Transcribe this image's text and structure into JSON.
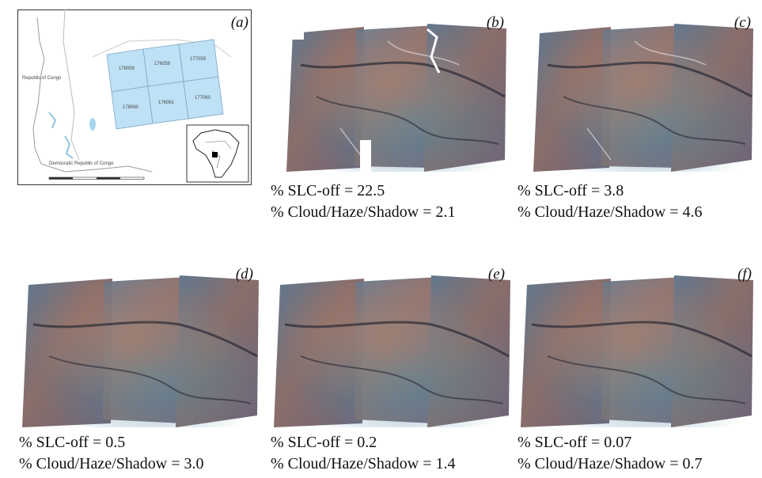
{
  "panels": [
    {
      "label": "(a)",
      "type": "map",
      "country_labels": [
        "Republic of Congo",
        "Democratic Republic of Congo"
      ],
      "scene_ids": [
        "178059",
        "176059",
        "177059",
        "178060",
        "176061",
        "177060"
      ]
    },
    {
      "label": "(b)",
      "slc_off": "% SLC-off = 22.5",
      "cloud": "% Cloud/Haze/Shadow = 2.1"
    },
    {
      "label": "(c)",
      "slc_off": "% SLC-off = 3.8",
      "cloud": "% Cloud/Haze/Shadow = 4.6"
    },
    {
      "label": "(d)",
      "slc_off": "% SLC-off = 0.5",
      "cloud": "% Cloud/Haze/Shadow = 3.0"
    },
    {
      "label": "(e)",
      "slc_off": "% SLC-off = 0.2",
      "cloud": "% Cloud/Haze/Shadow = 1.4"
    },
    {
      "label": "(f)",
      "slc_off": "% SLC-off = 0.07",
      "cloud": "% Cloud/Haze/Shadow = 0.7"
    }
  ],
  "colors": {
    "water": "#b8dcef",
    "scene_fill": "#bfe1f5",
    "scene_stroke": "#7aa6c4",
    "imagery_base": "#6e6a78",
    "imagery_warm": "#a07a6a",
    "imagery_cool": "#4f8aa0",
    "river": "#2a2a35"
  }
}
